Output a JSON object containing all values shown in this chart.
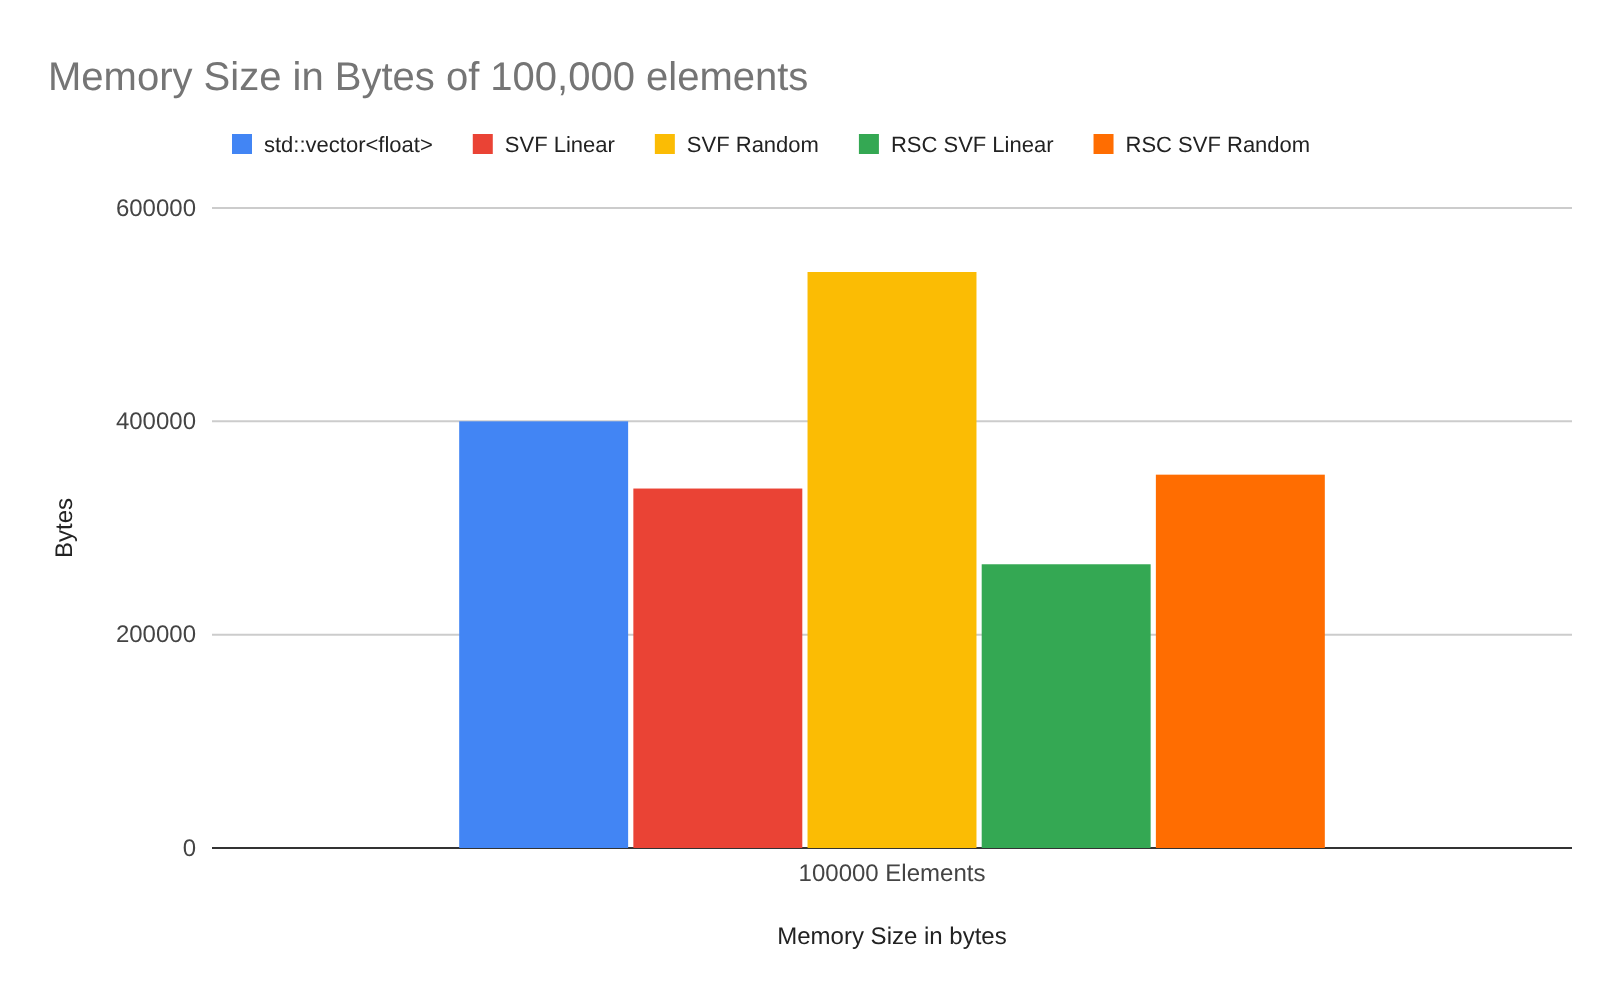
{
  "chart_data": {
    "type": "bar",
    "title": "Memory Size in Bytes of 100,000 elements",
    "xlabel": "Memory Size in bytes",
    "ylabel": "Bytes",
    "categories": [
      "100000 Elements"
    ],
    "series": [
      {
        "name": "std::vector<float>",
        "color": "#4285f4",
        "values": [
          400000
        ]
      },
      {
        "name": "SVF Linear",
        "color": "#ea4335",
        "values": [
          337000
        ]
      },
      {
        "name": "SVF Random",
        "color": "#fbbc04",
        "values": [
          540000
        ]
      },
      {
        "name": "RSC SVF Linear",
        "color": "#34a853",
        "values": [
          266000
        ]
      },
      {
        "name": "RSC SVF Random",
        "color": "#ff6d01",
        "values": [
          350000
        ]
      }
    ],
    "ylim": [
      0,
      600000
    ],
    "yticks": [
      0,
      200000,
      400000,
      600000
    ],
    "grid": "y",
    "legend": "top left"
  }
}
